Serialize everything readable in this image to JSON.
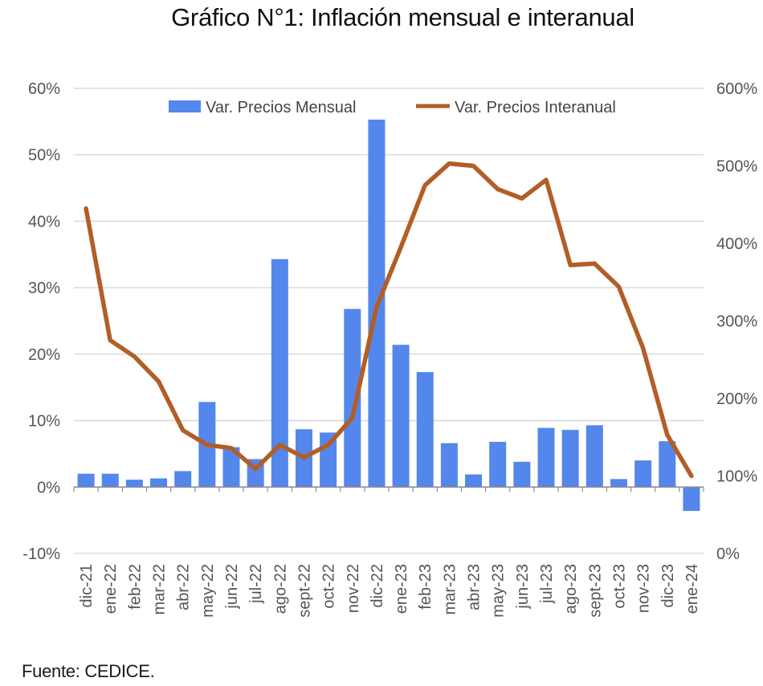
{
  "title": "Gráfico N°1: Inflación mensual e interanual",
  "source": "Fuente: CEDICE.",
  "colors": {
    "bar": "#5487EC",
    "line": "#B35D27",
    "grid": "#d4d4d4",
    "axis": "#8c8c8c"
  },
  "chart_data": {
    "type": "bar",
    "categories": [
      "dic-21",
      "ene-22",
      "feb-22",
      "mar-22",
      "abr-22",
      "may-22",
      "jun-22",
      "jul-22",
      "ago-22",
      "sept-22",
      "oct-22",
      "nov-22",
      "dic-22",
      "ene-23",
      "feb-23",
      "mar-23",
      "abr-23",
      "may-23",
      "jun-23",
      "jul-23",
      "ago-23",
      "sept-23",
      "oct-23",
      "nov-23",
      "dic-23",
      "ene-24"
    ],
    "series": [
      {
        "name": "Var. Precios Mensual",
        "type": "bar",
        "axis": "left",
        "values": [
          2.0,
          2.0,
          1.1,
          1.3,
          2.4,
          12.8,
          6.0,
          4.2,
          34.3,
          8.7,
          8.2,
          26.8,
          55.3,
          21.4,
          17.3,
          6.6,
          1.9,
          6.8,
          3.8,
          8.9,
          8.6,
          9.3,
          1.2,
          4.0,
          6.9,
          -3.6
        ]
      },
      {
        "name": "Var. Precios Interanual",
        "type": "line",
        "axis": "right",
        "values": [
          445,
          275,
          254,
          222,
          159,
          140,
          136,
          109,
          140,
          124,
          140,
          175,
          318,
          395,
          475,
          503,
          500,
          470,
          458,
          482,
          372,
          374,
          344,
          265,
          153,
          100
        ]
      }
    ],
    "y_left": {
      "ylim": [
        -10,
        60
      ],
      "ticks": [
        -10,
        0,
        10,
        20,
        30,
        40,
        50,
        60
      ],
      "tick_labels": [
        "-10%",
        "0%",
        "10%",
        "20%",
        "30%",
        "40%",
        "50%",
        "60%"
      ]
    },
    "y_right": {
      "ylim": [
        0,
        600
      ],
      "ticks": [
        0,
        100,
        200,
        300,
        400,
        500,
        600
      ],
      "tick_labels": [
        "0%",
        "100%",
        "200%",
        "300%",
        "400%",
        "500%",
        "600%"
      ]
    },
    "grid": true,
    "legend": "top"
  }
}
